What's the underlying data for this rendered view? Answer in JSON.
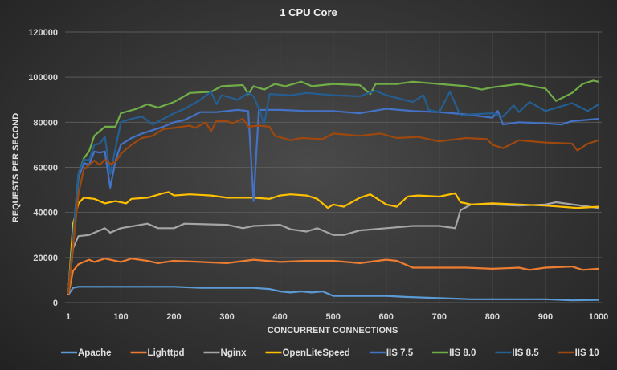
{
  "chart_data": {
    "type": "line",
    "title": "1 CPU Core",
    "xlabel": "CONCURRENT CONNECTIONS",
    "ylabel": "REQUESTS PER SECOND",
    "xlim": [
      1,
      1000
    ],
    "ylim": [
      0,
      120000
    ],
    "xticks": [
      1,
      100,
      200,
      300,
      400,
      500,
      600,
      700,
      800,
      900,
      1000
    ],
    "yticks": [
      0,
      20000,
      40000,
      60000,
      80000,
      100000,
      120000
    ],
    "grid": true,
    "legend": "bottom",
    "series": [
      {
        "name": "Apache",
        "color": "#5B9BD5",
        "points": [
          [
            1,
            3500
          ],
          [
            10,
            6500
          ],
          [
            20,
            7000
          ],
          [
            50,
            7000
          ],
          [
            100,
            7000
          ],
          [
            150,
            7000
          ],
          [
            200,
            7000
          ],
          [
            250,
            6500
          ],
          [
            300,
            6500
          ],
          [
            350,
            6500
          ],
          [
            380,
            6000
          ],
          [
            400,
            5000
          ],
          [
            420,
            4500
          ],
          [
            440,
            5000
          ],
          [
            460,
            4500
          ],
          [
            480,
            5000
          ],
          [
            500,
            3000
          ],
          [
            600,
            3000
          ],
          [
            640,
            2500
          ],
          [
            700,
            2000
          ],
          [
            760,
            1500
          ],
          [
            900,
            1500
          ],
          [
            950,
            1000
          ],
          [
            1000,
            1200
          ]
        ]
      },
      {
        "name": "Lighttpd",
        "color": "#ED7D31",
        "points": [
          [
            1,
            3500
          ],
          [
            10,
            14000
          ],
          [
            20,
            17000
          ],
          [
            40,
            19000
          ],
          [
            50,
            18000
          ],
          [
            70,
            19500
          ],
          [
            100,
            18000
          ],
          [
            120,
            19500
          ],
          [
            150,
            18500
          ],
          [
            170,
            17500
          ],
          [
            200,
            18500
          ],
          [
            250,
            18000
          ],
          [
            300,
            17500
          ],
          [
            350,
            19000
          ],
          [
            400,
            18000
          ],
          [
            450,
            18500
          ],
          [
            500,
            18500
          ],
          [
            550,
            17500
          ],
          [
            600,
            19000
          ],
          [
            620,
            18500
          ],
          [
            650,
            15500
          ],
          [
            700,
            15500
          ],
          [
            750,
            15500
          ],
          [
            800,
            15000
          ],
          [
            850,
            15500
          ],
          [
            870,
            14500
          ],
          [
            900,
            15500
          ],
          [
            950,
            16000
          ],
          [
            970,
            14500
          ],
          [
            1000,
            15000
          ]
        ]
      },
      {
        "name": "Nginx",
        "color": "#A5A5A5",
        "points": [
          [
            1,
            4000
          ],
          [
            10,
            24000
          ],
          [
            20,
            29500
          ],
          [
            40,
            30000
          ],
          [
            60,
            32000
          ],
          [
            70,
            33000
          ],
          [
            80,
            31000
          ],
          [
            100,
            33000
          ],
          [
            150,
            35000
          ],
          [
            170,
            33000
          ],
          [
            200,
            33000
          ],
          [
            220,
            35000
          ],
          [
            300,
            34500
          ],
          [
            330,
            33000
          ],
          [
            350,
            34000
          ],
          [
            400,
            34500
          ],
          [
            420,
            32500
          ],
          [
            450,
            31500
          ],
          [
            470,
            33000
          ],
          [
            500,
            30000
          ],
          [
            520,
            30000
          ],
          [
            550,
            32000
          ],
          [
            600,
            33000
          ],
          [
            650,
            34000
          ],
          [
            700,
            34000
          ],
          [
            730,
            33000
          ],
          [
            740,
            41000
          ],
          [
            760,
            43500
          ],
          [
            800,
            43500
          ],
          [
            850,
            43000
          ],
          [
            900,
            43500
          ],
          [
            920,
            44500
          ],
          [
            1000,
            42000
          ]
        ]
      },
      {
        "name": "OpenLiteSpeed",
        "color": "#FFC000",
        "points": [
          [
            1,
            4000
          ],
          [
            10,
            35000
          ],
          [
            20,
            44000
          ],
          [
            30,
            46500
          ],
          [
            50,
            46000
          ],
          [
            70,
            44000
          ],
          [
            90,
            45000
          ],
          [
            110,
            44000
          ],
          [
            120,
            46000
          ],
          [
            150,
            46500
          ],
          [
            180,
            48500
          ],
          [
            190,
            49000
          ],
          [
            200,
            47500
          ],
          [
            230,
            48000
          ],
          [
            270,
            47500
          ],
          [
            300,
            46500
          ],
          [
            350,
            46500
          ],
          [
            380,
            46000
          ],
          [
            400,
            47500
          ],
          [
            420,
            48000
          ],
          [
            450,
            47500
          ],
          [
            470,
            46000
          ],
          [
            490,
            42000
          ],
          [
            500,
            43500
          ],
          [
            520,
            42500
          ],
          [
            550,
            46500
          ],
          [
            570,
            48000
          ],
          [
            600,
            43500
          ],
          [
            620,
            42500
          ],
          [
            640,
            47000
          ],
          [
            660,
            47500
          ],
          [
            700,
            47000
          ],
          [
            730,
            48500
          ],
          [
            740,
            44500
          ],
          [
            760,
            43500
          ],
          [
            800,
            44000
          ],
          [
            850,
            43500
          ],
          [
            900,
            43000
          ],
          [
            960,
            42000
          ],
          [
            1000,
            42500
          ]
        ]
      },
      {
        "name": "IIS 7.5",
        "color": "#4472C4",
        "points": [
          [
            1,
            4000
          ],
          [
            20,
            55000
          ],
          [
            30,
            62000
          ],
          [
            40,
            61000
          ],
          [
            50,
            67000
          ],
          [
            60,
            66500
          ],
          [
            70,
            67000
          ],
          [
            80,
            51000
          ],
          [
            90,
            63000
          ],
          [
            100,
            70000
          ],
          [
            120,
            73000
          ],
          [
            140,
            75000
          ],
          [
            160,
            76500
          ],
          [
            180,
            78000
          ],
          [
            200,
            80000
          ],
          [
            220,
            81000
          ],
          [
            250,
            84500
          ],
          [
            280,
            84500
          ],
          [
            300,
            85000
          ],
          [
            320,
            85500
          ],
          [
            340,
            85000
          ],
          [
            350,
            45000
          ],
          [
            360,
            85500
          ],
          [
            400,
            85500
          ],
          [
            450,
            85000
          ],
          [
            500,
            85000
          ],
          [
            550,
            84000
          ],
          [
            600,
            86000
          ],
          [
            650,
            85000
          ],
          [
            700,
            84500
          ],
          [
            750,
            83500
          ],
          [
            800,
            82000
          ],
          [
            810,
            85000
          ],
          [
            820,
            79000
          ],
          [
            850,
            80000
          ],
          [
            900,
            79500
          ],
          [
            930,
            79000
          ],
          [
            950,
            80500
          ],
          [
            1000,
            81500
          ]
        ]
      },
      {
        "name": "IIS 8.0",
        "color": "#70AD47",
        "points": [
          [
            1,
            4000
          ],
          [
            20,
            57000
          ],
          [
            30,
            64000
          ],
          [
            40,
            67000
          ],
          [
            50,
            74000
          ],
          [
            70,
            78000
          ],
          [
            90,
            78000
          ],
          [
            100,
            84000
          ],
          [
            130,
            86000
          ],
          [
            150,
            88000
          ],
          [
            170,
            86500
          ],
          [
            200,
            89000
          ],
          [
            230,
            93000
          ],
          [
            270,
            93500
          ],
          [
            290,
            96000
          ],
          [
            330,
            96500
          ],
          [
            340,
            92500
          ],
          [
            350,
            96000
          ],
          [
            370,
            94500
          ],
          [
            390,
            97000
          ],
          [
            410,
            96000
          ],
          [
            440,
            98000
          ],
          [
            460,
            96000
          ],
          [
            500,
            97000
          ],
          [
            550,
            96500
          ],
          [
            570,
            92500
          ],
          [
            580,
            97000
          ],
          [
            620,
            97000
          ],
          [
            650,
            98000
          ],
          [
            700,
            97000
          ],
          [
            750,
            96000
          ],
          [
            780,
            94500
          ],
          [
            800,
            95500
          ],
          [
            850,
            97000
          ],
          [
            900,
            95000
          ],
          [
            920,
            89500
          ],
          [
            950,
            93000
          ],
          [
            970,
            97000
          ],
          [
            990,
            98500
          ],
          [
            1000,
            98000
          ]
        ]
      },
      {
        "name": "IIS 8.5",
        "color": "#255E91",
        "points": [
          [
            1,
            4000
          ],
          [
            20,
            57000
          ],
          [
            30,
            63500
          ],
          [
            40,
            63000
          ],
          [
            50,
            70000
          ],
          [
            60,
            70500
          ],
          [
            70,
            73500
          ],
          [
            80,
            57000
          ],
          [
            100,
            80000
          ],
          [
            120,
            81500
          ],
          [
            140,
            82500
          ],
          [
            160,
            79000
          ],
          [
            180,
            81500
          ],
          [
            200,
            84000
          ],
          [
            220,
            86000
          ],
          [
            250,
            90000
          ],
          [
            270,
            93500
          ],
          [
            280,
            88000
          ],
          [
            290,
            92000
          ],
          [
            320,
            90000
          ],
          [
            340,
            93000
          ],
          [
            350,
            91500
          ],
          [
            360,
            86000
          ],
          [
            370,
            79000
          ],
          [
            380,
            92500
          ],
          [
            420,
            92000
          ],
          [
            450,
            93000
          ],
          [
            500,
            92000
          ],
          [
            550,
            91500
          ],
          [
            580,
            94000
          ],
          [
            600,
            92000
          ],
          [
            650,
            89000
          ],
          [
            670,
            92000
          ],
          [
            680,
            85500
          ],
          [
            700,
            84500
          ],
          [
            720,
            93500
          ],
          [
            740,
            83000
          ],
          [
            760,
            83500
          ],
          [
            800,
            84000
          ],
          [
            820,
            82500
          ],
          [
            840,
            87500
          ],
          [
            850,
            84500
          ],
          [
            870,
            89000
          ],
          [
            900,
            85000
          ],
          [
            950,
            88500
          ],
          [
            980,
            85000
          ],
          [
            1000,
            88000
          ]
        ]
      },
      {
        "name": "IIS 10",
        "color": "#9E480E",
        "points": [
          [
            1,
            4000
          ],
          [
            20,
            48000
          ],
          [
            30,
            59000
          ],
          [
            50,
            63000
          ],
          [
            60,
            61000
          ],
          [
            70,
            63500
          ],
          [
            80,
            61500
          ],
          [
            90,
            62500
          ],
          [
            100,
            66000
          ],
          [
            120,
            70000
          ],
          [
            140,
            73000
          ],
          [
            160,
            74000
          ],
          [
            180,
            77000
          ],
          [
            200,
            77500
          ],
          [
            230,
            78500
          ],
          [
            240,
            77500
          ],
          [
            260,
            80000
          ],
          [
            270,
            76000
          ],
          [
            280,
            80500
          ],
          [
            300,
            80500
          ],
          [
            310,
            79500
          ],
          [
            330,
            81500
          ],
          [
            340,
            78000
          ],
          [
            360,
            78500
          ],
          [
            380,
            78000
          ],
          [
            390,
            74000
          ],
          [
            420,
            72000
          ],
          [
            440,
            73000
          ],
          [
            480,
            72500
          ],
          [
            500,
            75000
          ],
          [
            550,
            74000
          ],
          [
            590,
            75000
          ],
          [
            620,
            73000
          ],
          [
            660,
            73500
          ],
          [
            700,
            71500
          ],
          [
            750,
            73000
          ],
          [
            790,
            72500
          ],
          [
            800,
            70000
          ],
          [
            820,
            68500
          ],
          [
            850,
            72000
          ],
          [
            900,
            71000
          ],
          [
            950,
            70500
          ],
          [
            960,
            67500
          ],
          [
            980,
            70500
          ],
          [
            1000,
            72000
          ]
        ]
      }
    ]
  }
}
